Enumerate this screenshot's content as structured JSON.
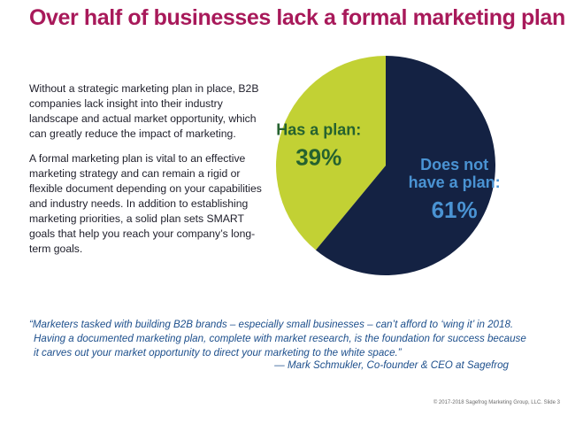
{
  "title": "Over half of businesses lack a formal marketing plan",
  "body": {
    "p1": "Without a strategic marketing plan in place, B2B companies lack insight into their industry landscape and actual market opportunity, which can greatly reduce the impact of marketing.",
    "p2": "A formal marketing plan is vital to an effective marketing strategy and can remain a rigid or flexible document depending on your capabilities and industry needs. In addition to establishing marketing priorities, a solid plan sets SMART goals that help you reach your company’s long-term goals."
  },
  "chart_data": {
    "type": "pie",
    "title": "",
    "slices": [
      {
        "label_lines": [
          "Has a plan:"
        ],
        "value_label": "39%",
        "value": 39,
        "color": "#c2d134",
        "text_color": "#25622f"
      },
      {
        "label_lines": [
          "Does not",
          "have a plan:"
        ],
        "value_label": "61%",
        "value": 61,
        "color": "#142243",
        "text_color": "#4a93d3"
      }
    ]
  },
  "quote": {
    "line1": "“Marketers tasked with building B2B brands – especially small businesses – can’t afford to ‘wing it’ in 2018.",
    "line2": "Having a documented marketing plan, complete with market research, is the foundation for success because",
    "line3": "it carves out your market opportunity to direct your marketing to the white space.”",
    "attribution": "— Mark Schmukler, Co-founder & CEO at Sagefrog"
  },
  "footer": "© 2017-2018 Sagefrog Marketing Group, LLC.  Slide 3"
}
